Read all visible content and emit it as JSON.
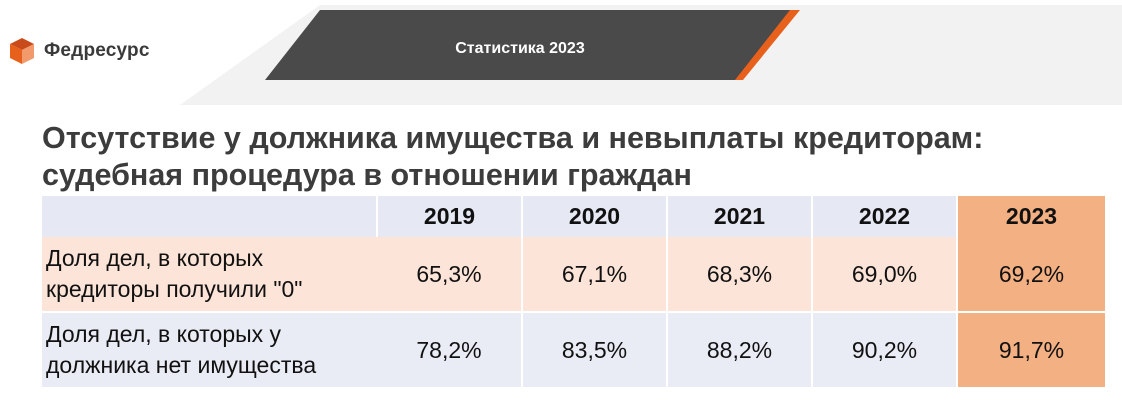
{
  "brand": {
    "name": "Федресурс",
    "colors": {
      "orange": "#e8611c",
      "dark": "#4a4a4a",
      "highlight": "#f3b083"
    }
  },
  "banner": {
    "title": "Статистика 2023"
  },
  "heading": {
    "line1": "Отсутствие у должника имущества и невыплаты кредиторам:",
    "line2": "судебная процедура в отношении граждан"
  },
  "table": {
    "years": [
      "2019",
      "2020",
      "2021",
      "2022",
      "2023"
    ],
    "rows": [
      {
        "label_line1": "Доля дел, в которых",
        "label_line2": "кредиторы получили \"0\"",
        "values": [
          "65,3%",
          "67,1%",
          "68,3%",
          "69,0%",
          "69,2%"
        ]
      },
      {
        "label_line1": "Доля дел, в которых у",
        "label_line2": "должника нет имущества",
        "values": [
          "78,2%",
          "83,5%",
          "88,2%",
          "90,2%",
          "91,7%"
        ]
      }
    ]
  }
}
